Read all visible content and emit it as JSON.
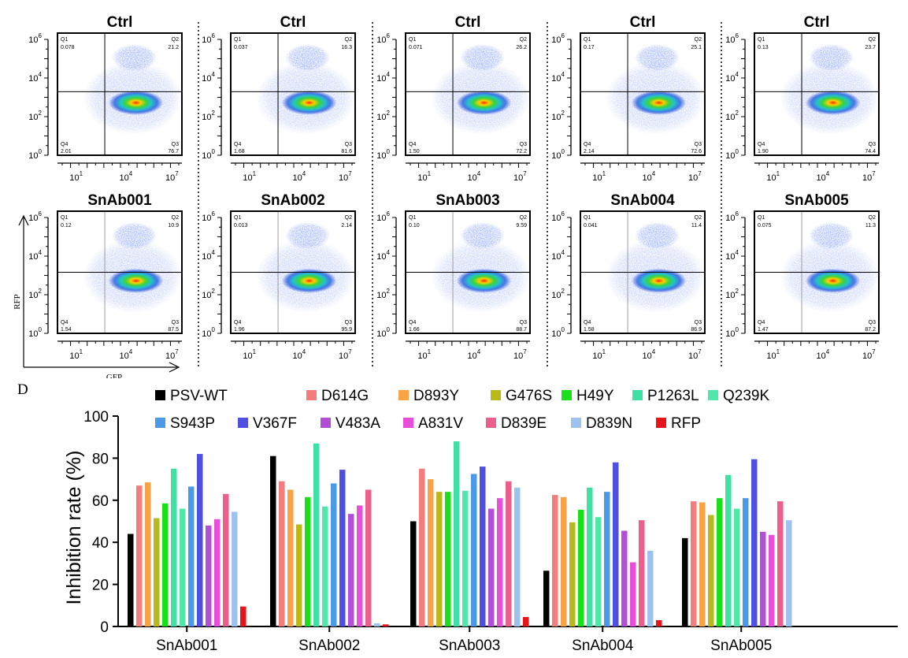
{
  "flow": {
    "x_axis_label": "GFP",
    "y_axis_label": "RFP",
    "tick_labels": [
      "10",
      "1",
      "10",
      "4",
      "10",
      "7",
      "10",
      "0",
      "10",
      "2",
      "10",
      "4",
      "10",
      "6"
    ],
    "quadrant_names": [
      "Q1",
      "Q2",
      "Q3",
      "Q4"
    ],
    "rows": [
      [
        {
          "title": "Ctrl",
          "q1": "0.078",
          "q2": "21.2",
          "q3": "76.7",
          "q4": "2.01"
        },
        {
          "title": "Ctrl",
          "q1": "0.037",
          "q2": "16.3",
          "q3": "81.6",
          "q4": "1.68"
        },
        {
          "title": "Ctrl",
          "q1": "0.071",
          "q2": "26.2",
          "q3": "72.2",
          "q4": "1.50"
        },
        {
          "title": "Ctrl",
          "q1": "0.17",
          "q2": "25.1",
          "q3": "72.6",
          "q4": "2.14"
        },
        {
          "title": "Ctrl",
          "q1": "0.13",
          "q2": "23.7",
          "q3": "74.4",
          "q4": "1.90"
        }
      ],
      [
        {
          "title": "SnAb001",
          "q1": "0.12",
          "q2": "10.9",
          "q3": "87.5",
          "q4": "1.54"
        },
        {
          "title": "SnAb002",
          "q1": "0.013",
          "q2": "2.14",
          "q3": "95.9",
          "q4": "1.96"
        },
        {
          "title": "SnAb003",
          "q1": "0.10",
          "q2": "9.59",
          "q3": "88.7",
          "q4": "1.66"
        },
        {
          "title": "SnAb004",
          "q1": "0.041",
          "q2": "11.4",
          "q3": "86.9",
          "q4": "1.58"
        },
        {
          "title": "SnAb005",
          "q1": "0.075",
          "q2": "11.3",
          "q3": "87.2",
          "q4": "1.47"
        }
      ]
    ]
  },
  "chart_data": {
    "type": "bar",
    "panel_label": "D",
    "title": "",
    "xlabel": "",
    "ylabel": "Inhibition rate (%)",
    "ylim": [
      0,
      100
    ],
    "yticks": [
      "0",
      "20",
      "40",
      "60",
      "80",
      "100"
    ],
    "grid": false,
    "legend_position": "top",
    "categories": [
      "SnAb001",
      "SnAb002",
      "SnAb003",
      "SnAb004",
      "SnAb005"
    ],
    "series": [
      {
        "name": "PSV-WT",
        "color": "#000000",
        "values": [
          44,
          81,
          50,
          26.5,
          42
        ]
      },
      {
        "name": "D614G",
        "color": "#f47c7c",
        "values": [
          67,
          69,
          75,
          62.5,
          59.5
        ]
      },
      {
        "name": "D893Y",
        "color": "#f9a347",
        "values": [
          68.5,
          65,
          70,
          61.5,
          59
        ]
      },
      {
        "name": "G476S",
        "color": "#b9b919",
        "values": [
          51.5,
          48.5,
          64,
          49.5,
          53
        ]
      },
      {
        "name": "H49Y",
        "color": "#19e019",
        "values": [
          58.5,
          61.5,
          64,
          55.5,
          61
        ]
      },
      {
        "name": "P1263L",
        "color": "#3fe0a6",
        "values": [
          75,
          87,
          88,
          66,
          72
        ]
      },
      {
        "name": "Q239K",
        "color": "#4fe8aa",
        "values": [
          56,
          57,
          64.5,
          52,
          56
        ]
      },
      {
        "name": "S943P",
        "color": "#4b9ae8",
        "values": [
          66.5,
          68,
          72.5,
          64,
          61
        ]
      },
      {
        "name": "V367F",
        "color": "#5050e0",
        "values": [
          82,
          74.5,
          76,
          78,
          79.5
        ]
      },
      {
        "name": "V483A",
        "color": "#b34fd6",
        "values": [
          48,
          53.5,
          56,
          45.5,
          45
        ]
      },
      {
        "name": "A831V",
        "color": "#e84fd8",
        "values": [
          51,
          57.5,
          61,
          30.5,
          43.5
        ]
      },
      {
        "name": "D839E",
        "color": "#ec5f8c",
        "values": [
          63,
          65,
          69,
          50.5,
          59.5
        ]
      },
      {
        "name": "D839N",
        "color": "#9ec2f0",
        "values": [
          54.5,
          1.5,
          66,
          36,
          50.5
        ]
      },
      {
        "name": "RFP",
        "color": "#e8141c",
        "values": [
          9.5,
          1,
          4.5,
          3,
          0
        ]
      }
    ]
  }
}
